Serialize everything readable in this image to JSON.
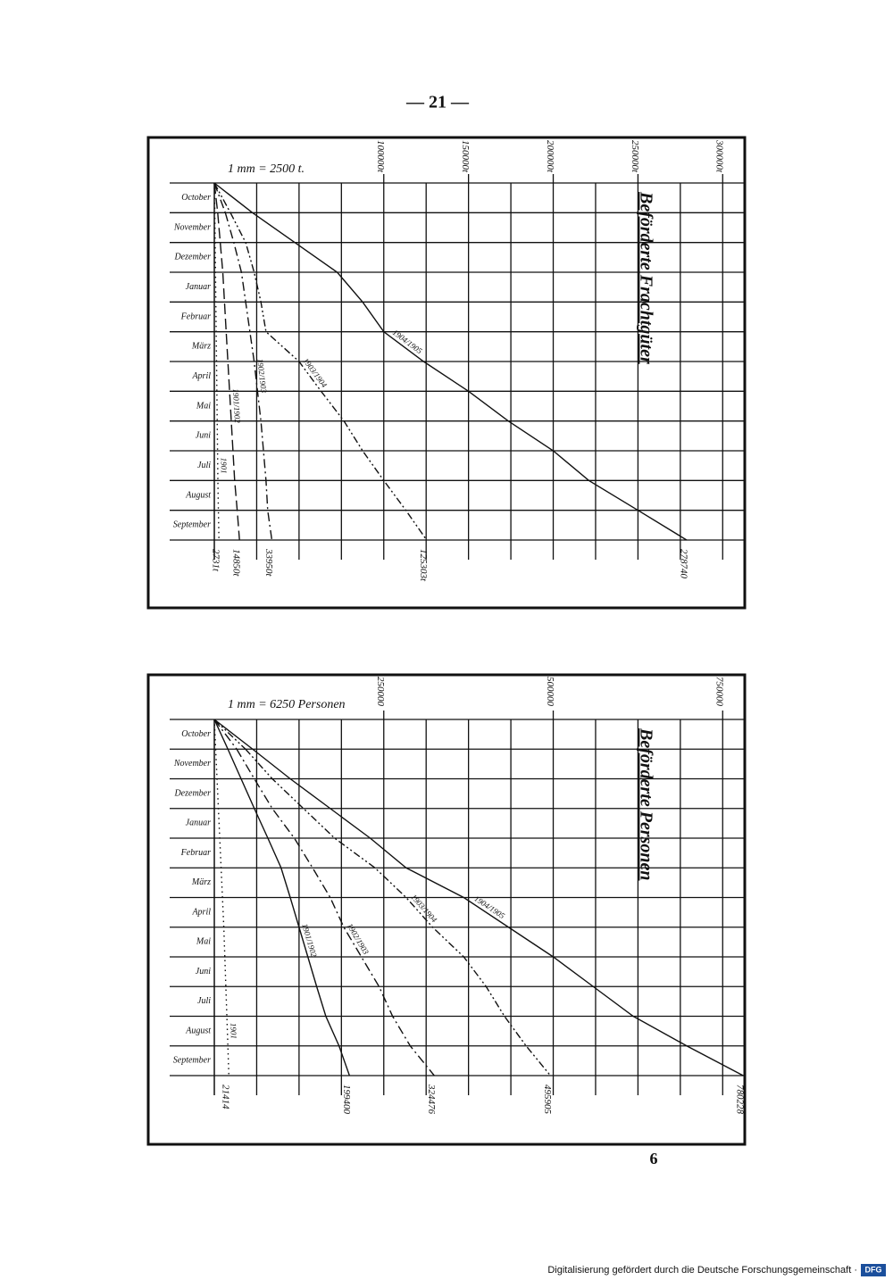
{
  "header": {
    "page_marker": "— 21 —"
  },
  "chart_data": [
    {
      "type": "line",
      "title": "Beförderte Frachtgüter",
      "scale_note": "1 mm = 2500 t.",
      "categories": [
        "October",
        "November",
        "Dezember",
        "Januar",
        "Februar",
        "März",
        "April",
        "Mai",
        "Juni",
        "Juli",
        "August",
        "September"
      ],
      "xlim": [
        0,
        312500
      ],
      "xticks": [
        {
          "value": 100000,
          "label": "100000t"
        },
        {
          "value": 150000,
          "label": "150000t"
        },
        {
          "value": 200000,
          "label": "200000t"
        },
        {
          "value": 250000,
          "label": "250000t"
        },
        {
          "value": 300000,
          "label": "300000t"
        }
      ],
      "xgrid": [
        25000,
        50000,
        75000,
        125000,
        175000,
        225000,
        275000
      ],
      "series": [
        {
          "name": "1904/1905",
          "color": "#111111",
          "style": "solid",
          "values": [
            22500,
            47500,
            72500,
            87500,
            100000,
            123500,
            150000,
            173500,
            200000,
            221000,
            250000,
            278740
          ]
        },
        {
          "name": "1903/1904",
          "color": "#111111",
          "style": "dashdotdot",
          "values": [
            9500,
            18500,
            23500,
            27500,
            30500,
            50000,
            63000,
            76500,
            87500,
            100000,
            113000,
            125303
          ],
          "value_labels": [
            null,
            null,
            null,
            null,
            null,
            null,
            null,
            null,
            null,
            null,
            null,
            "125303t"
          ]
        },
        {
          "name": "1902/1903",
          "color": "#111111",
          "style": "dashdot",
          "values": [
            6500,
            11500,
            16000,
            18500,
            21000,
            23500,
            25500,
            27500,
            29000,
            30500,
            31500,
            33950
          ],
          "value_labels": [
            null,
            null,
            null,
            null,
            null,
            null,
            null,
            null,
            null,
            null,
            null,
            "33950t"
          ]
        },
        {
          "name": "1901/1902",
          "color": "#111111",
          "style": "dashed",
          "values": [
            2000,
            3500,
            5000,
            6000,
            7000,
            8000,
            9000,
            10000,
            11000,
            12000,
            13500,
            14850
          ],
          "value_labels": [
            null,
            null,
            null,
            null,
            null,
            null,
            null,
            null,
            null,
            null,
            null,
            "14850t"
          ]
        },
        {
          "name": "1901",
          "color": "#111111",
          "style": "dotted",
          "values": [
            300,
            500,
            700,
            900,
            1100,
            1300,
            1500,
            1700,
            1900,
            2100,
            2400,
            2731
          ],
          "value_labels": [
            null,
            null,
            null,
            null,
            null,
            null,
            null,
            null,
            null,
            null,
            null,
            "2731t"
          ]
        }
      ]
    },
    {
      "type": "line",
      "title": "Beförderte Personen",
      "scale_note": "1 mm = 6250 Personen",
      "categories": [
        "October",
        "November",
        "Dezember",
        "Januar",
        "Februar",
        "März",
        "April",
        "Mai",
        "Juni",
        "Juli",
        "August",
        "September"
      ],
      "xlim": [
        0,
        781250
      ],
      "xticks": [
        250000,
        500000,
        750000
      ],
      "xgrid": [
        62500,
        125000,
        187500,
        312500,
        375000,
        437500,
        562500,
        625000,
        687500
      ],
      "series": [
        {
          "name": "1904/1905",
          "color": "#111111",
          "style": "solid",
          "values": [
            56500,
            112000,
            171000,
            230000,
            283000,
            368000,
            434000,
            500000,
            559000,
            618000,
            697000,
            780228
          ]
        },
        {
          "name": "1903/1904",
          "color": "#111111",
          "style": "dashdotdot",
          "values": [
            46000,
            85500,
            131500,
            177500,
            237000,
            283000,
            322000,
            368000,
            401000,
            428000,
            460000,
            495905
          ]
        },
        {
          "name": "1902/1903",
          "color": "#111111",
          "style": "dashdot",
          "values": [
            33000,
            59000,
            85500,
            118000,
            145000,
            171000,
            191000,
            217000,
            243000,
            263000,
            289000,
            324476
          ]
        },
        {
          "name": "1901/1902",
          "color": "#111111",
          "style": "solid",
          "values": [
            20000,
            39500,
            59000,
            79000,
            98500,
            112000,
            125000,
            138000,
            151000,
            164500,
            184000,
            199400
          ]
        },
        {
          "name": "1901",
          "color": "#111111",
          "style": "dotted",
          "values": [
            2000,
            4000,
            6000,
            8000,
            10000,
            12000,
            14000,
            15500,
            17000,
            18500,
            20000,
            21414
          ]
        }
      ]
    }
  ],
  "page_number": "6",
  "footer": {
    "text": "Digitalisierung gefördert durch die Deutsche Forschungsgemeinschaft ·",
    "logo": "DFG"
  }
}
